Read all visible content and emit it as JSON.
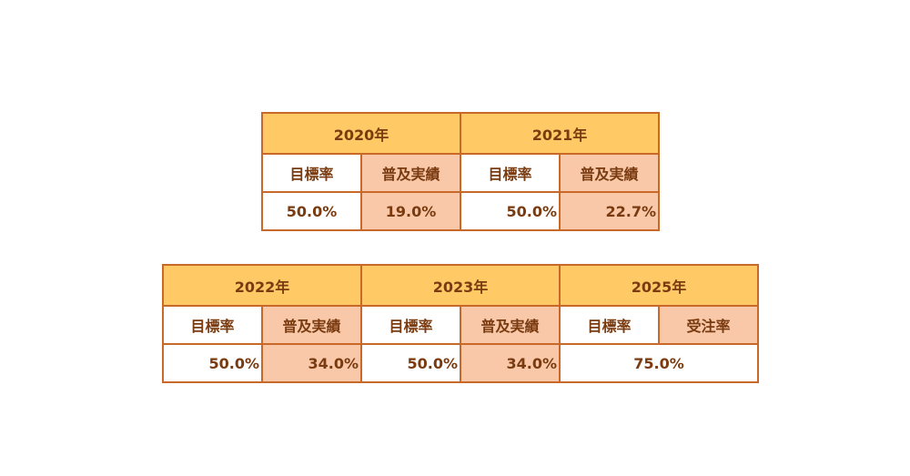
{
  "top_table": {
    "years": [
      {
        "year": "2020年",
        "label_a": "目標率",
        "label_b": "普及実績",
        "value_a": "50.0%",
        "value_b": "19.0%"
      },
      {
        "year": "2021年",
        "label_a": "目標率",
        "label_b": "普及実績",
        "value_a": "50.0%",
        "value_b": "22.7%"
      }
    ]
  },
  "bottom_table": {
    "years": [
      {
        "year": "2022年",
        "label_a": "目標率",
        "label_b": "普及実績",
        "value_a": "50.0%",
        "value_b": "34.0%"
      },
      {
        "year": "2023年",
        "label_a": "目標率",
        "label_b": "普及実績",
        "value_a": "50.0%",
        "value_b": "34.0%"
      },
      {
        "year": "2025年",
        "label_a": "目標率",
        "label_b": "受注率",
        "value_merged": "75.0%"
      }
    ]
  },
  "colors": {
    "header_bg": "#ffc966",
    "shaded_bg": "#f8c8a8",
    "border": "#c8692a",
    "text": "#7a3b10"
  }
}
